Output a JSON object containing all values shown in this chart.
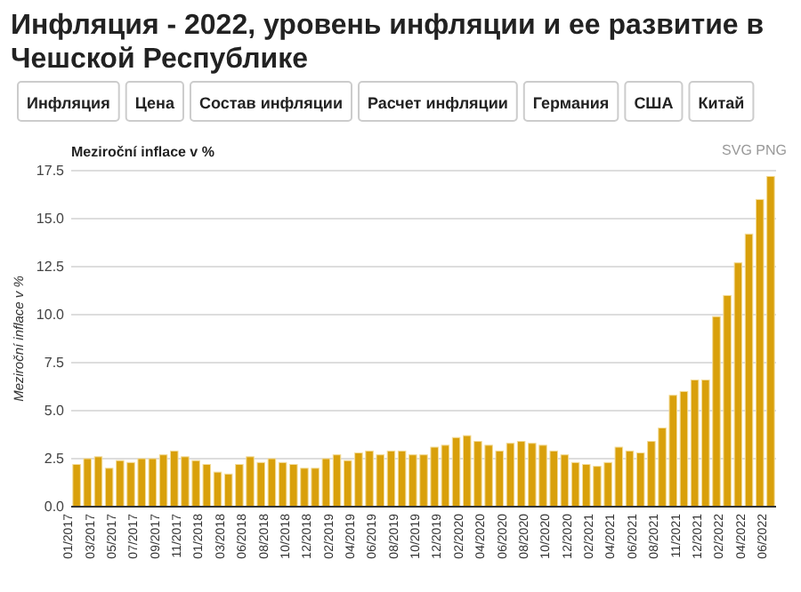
{
  "chart_data": {
    "type": "bar",
    "title": "Инфляция - 2022, уровень инфляции и ее развитие в Чешской Республике",
    "subtitle": "Meziroční inflace v %",
    "ylabel": "Meziroční inflace v %",
    "annotations": [
      "Инфляция",
      "Цена",
      "Состав инфляции",
      "Расчет инфляции",
      "Германия",
      "США",
      "Китай",
      "SVG PNG"
    ],
    "categories": [
      "01/2017",
      null,
      "03/2017",
      null,
      "05/2017",
      null,
      "07/2017",
      null,
      "09/2017",
      null,
      "11/2017",
      null,
      "01/2018",
      null,
      "03/2018",
      null,
      "06/2018",
      null,
      "08/2018",
      null,
      "10/2018",
      null,
      "12/2018",
      null,
      "02/2019",
      null,
      "04/2019",
      null,
      "06/2019",
      null,
      "08/2019",
      null,
      "10/2019",
      null,
      "12/2019",
      null,
      "02/2020",
      null,
      "04/2020",
      null,
      "06/2020",
      null,
      "08/2020",
      null,
      "10/2020",
      null,
      "12/2020",
      null,
      "02/2021",
      null,
      "04/2021",
      null,
      "06/2021",
      null,
      "08/2021",
      null,
      "11/2021",
      null,
      "12/2021",
      null,
      "02/2022",
      null,
      "04/2022",
      null,
      "06/2022"
    ],
    "values": [
      2.2,
      2.5,
      2.6,
      2.0,
      2.4,
      2.3,
      2.5,
      2.5,
      2.7,
      2.9,
      2.6,
      2.4,
      2.2,
      1.8,
      1.7,
      2.2,
      2.6,
      2.3,
      2.5,
      2.3,
      2.2,
      2.0,
      2.0,
      2.5,
      2.7,
      2.4,
      2.8,
      2.9,
      2.7,
      2.9,
      2.9,
      2.7,
      2.7,
      3.1,
      3.2,
      3.6,
      3.7,
      3.4,
      3.2,
      2.9,
      3.3,
      3.4,
      3.3,
      3.2,
      2.9,
      2.7,
      2.3,
      2.2,
      2.1,
      2.3,
      3.1,
      2.9,
      2.8,
      3.4,
      4.1,
      5.8,
      6.0,
      6.6,
      6.6,
      9.9,
      11.0,
      12.7,
      14.2,
      16.0,
      17.2
    ],
    "color": "#d9a00b",
    "ylim": [
      0,
      17.5
    ],
    "yticks": [
      {
        "value": 0,
        "label": "0.0"
      },
      {
        "value": 2.5,
        "label": "2.5"
      },
      {
        "value": 5,
        "label": "5.0"
      },
      {
        "value": 7.5,
        "label": "7.5"
      },
      {
        "value": 10,
        "label": "10.0"
      },
      {
        "value": 12.5,
        "label": "12.5"
      },
      {
        "value": 15,
        "label": "15.0"
      },
      {
        "value": 17.5,
        "label": "17.5"
      }
    ],
    "grid": "y"
  }
}
